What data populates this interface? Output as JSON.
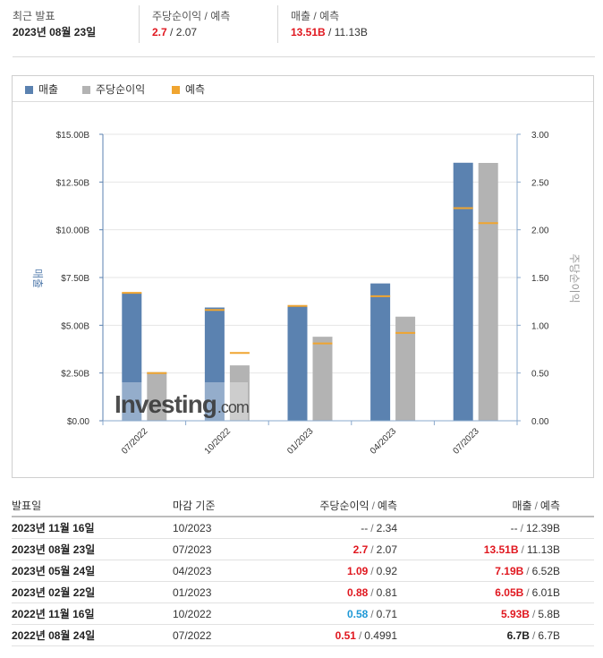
{
  "summary": {
    "latest_label": "최근 발표",
    "latest_date": "2023년 08월 23일",
    "eps_label": "주당순이익 / 예측",
    "eps_actual": "2.7",
    "eps_forecast": "2.07",
    "rev_label": "매출 / 예측",
    "rev_actual": "13.51B",
    "rev_forecast": "11.13B"
  },
  "legend": {
    "revenue": "매출",
    "eps": "주당순이익",
    "forecast": "예측"
  },
  "colors": {
    "revenue": "#5b82b0",
    "eps": "#b3b3b3",
    "forecast": "#f0a530",
    "positive": "#e0171f",
    "negative": "#1e98d6"
  },
  "chart_data": {
    "type": "bar",
    "categories": [
      "07/2022",
      "10/2022",
      "01/2023",
      "04/2023",
      "07/2023"
    ],
    "series": [
      {
        "name": "매출",
        "axis": "left",
        "values": [
          6.7,
          5.93,
          6.05,
          7.19,
          13.51
        ],
        "forecast": [
          6.7,
          5.8,
          6.01,
          6.52,
          11.13
        ]
      },
      {
        "name": "주당순이익",
        "axis": "right",
        "values": [
          0.51,
          0.58,
          0.88,
          1.09,
          2.7
        ],
        "forecast": [
          0.4991,
          0.71,
          0.81,
          0.92,
          2.07
        ]
      }
    ],
    "left_axis": {
      "label": "매출",
      "min": 0,
      "max": 15,
      "ticks": [
        "$0.00",
        "$2.50B",
        "$5.00B",
        "$7.50B",
        "$10.00B",
        "$12.50B",
        "$15.00B"
      ]
    },
    "right_axis": {
      "label": "주당순이익",
      "min": 0,
      "max": 3,
      "ticks": [
        "0.00",
        "0.50",
        "1.00",
        "1.50",
        "2.00",
        "2.50",
        "3.00"
      ]
    },
    "grid": true,
    "legend_position": "top-left"
  },
  "watermark": "Investing.com",
  "table": {
    "headers": {
      "date": "발표일",
      "period": "마감 기준",
      "eps": "주당순이익",
      "eps_fc": "예측",
      "rev": "매출",
      "rev_fc": "예측"
    },
    "rows": [
      {
        "date": "2023년 11월 16일",
        "period": "10/2023",
        "eps": "--",
        "eps_fc": "2.34",
        "rev": "--",
        "rev_fc": "12.39B",
        "eps_tone": "plain",
        "rev_tone": "plain"
      },
      {
        "date": "2023년 08월 23일",
        "period": "07/2023",
        "eps": "2.7",
        "eps_fc": "2.07",
        "rev": "13.51B",
        "rev_fc": "11.13B",
        "eps_tone": "red",
        "rev_tone": "red"
      },
      {
        "date": "2023년 05월 24일",
        "period": "04/2023",
        "eps": "1.09",
        "eps_fc": "0.92",
        "rev": "7.19B",
        "rev_fc": "6.52B",
        "eps_tone": "red",
        "rev_tone": "red"
      },
      {
        "date": "2023년 02월 22일",
        "period": "01/2023",
        "eps": "0.88",
        "eps_fc": "0.81",
        "rev": "6.05B",
        "rev_fc": "6.01B",
        "eps_tone": "red",
        "rev_tone": "red"
      },
      {
        "date": "2022년 11월 16일",
        "period": "10/2022",
        "eps": "0.58",
        "eps_fc": "0.71",
        "rev": "5.93B",
        "rev_fc": "5.8B",
        "eps_tone": "blue",
        "rev_tone": "red"
      },
      {
        "date": "2022년 08월 24일",
        "period": "07/2022",
        "eps": "0.51",
        "eps_fc": "0.4991",
        "rev": "6.7B",
        "rev_fc": "6.7B",
        "eps_tone": "red",
        "rev_tone": "blk"
      }
    ]
  }
}
